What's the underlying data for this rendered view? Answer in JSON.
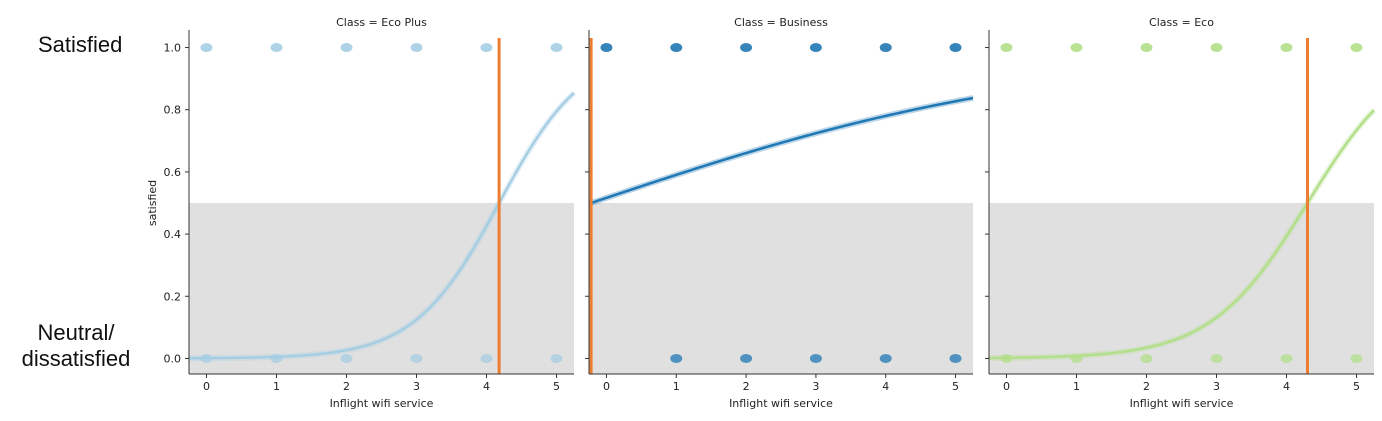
{
  "annotations": {
    "top_label": "Satisfied",
    "bottom_label_line1": "Neutral/",
    "bottom_label_line2": "dissatisfied"
  },
  "chart_data": [
    {
      "type": "scatter",
      "title": "Class = Eco Plus",
      "xlabel": "Inflight wifi service",
      "ylabel": "satisfied",
      "x_ticks": [
        0,
        1,
        2,
        3,
        4,
        5
      ],
      "y_ticks": [
        "0.0",
        "0.2",
        "0.4",
        "0.6",
        "0.8",
        "1.0"
      ],
      "xlim": [
        -0.25,
        5.25
      ],
      "ylim": [
        -0.05,
        1.05
      ],
      "color": "#a6cee3",
      "points_y1": [
        0,
        1,
        2,
        3,
        4,
        5
      ],
      "points_y0": [
        0,
        1,
        2,
        3,
        4,
        5
      ],
      "logistic": {
        "x0": 4.18,
        "k": 1.65
      },
      "threshold_x": 4.18,
      "shaded_below": 0.5
    },
    {
      "type": "scatter",
      "title": "Class = Business",
      "xlabel": "Inflight wifi service",
      "ylabel": "",
      "x_ticks": [
        0,
        1,
        2,
        3,
        4,
        5
      ],
      "y_ticks": [],
      "xlim": [
        -0.25,
        5.25
      ],
      "ylim": [
        -0.05,
        1.05
      ],
      "color": "#1f78b4",
      "points_y1": [
        0,
        1,
        2,
        3,
        4,
        5
      ],
      "points_y0": [
        1,
        2,
        3,
        4,
        5
      ],
      "logistic": {
        "x0": -0.22,
        "k": 0.3
      },
      "threshold_x": -0.22,
      "shaded_below": 0.5
    },
    {
      "type": "scatter",
      "title": "Class = Eco",
      "xlabel": "Inflight wifi service",
      "ylabel": "",
      "x_ticks": [
        0,
        1,
        2,
        3,
        4,
        5
      ],
      "y_ticks": [],
      "xlim": [
        -0.25,
        5.25
      ],
      "ylim": [
        -0.05,
        1.05
      ],
      "color": "#b2df8a",
      "points_y1": [
        0,
        1,
        2,
        3,
        4,
        5
      ],
      "points_y0": [
        0,
        1,
        2,
        3,
        4,
        5
      ],
      "logistic": {
        "x0": 4.3,
        "k": 1.45
      },
      "threshold_x": 4.3,
      "shaded_below": 0.5
    }
  ],
  "colors": {
    "threshold_line": "#ed7d31",
    "shade": "#e0e0e0",
    "axis": "#333333"
  }
}
